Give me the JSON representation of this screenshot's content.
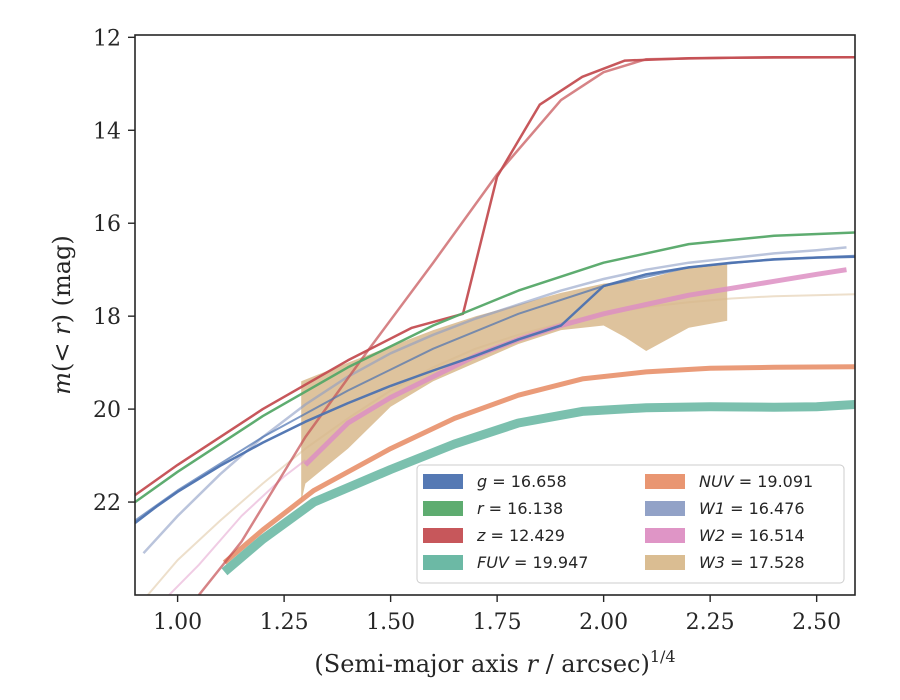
{
  "chart_data": {
    "type": "line",
    "xlabel": "(Semi-major axis r / arcsec)",
    "xlabel_sup": "1/4",
    "ylabel": "m(< r) (mag)",
    "xlim": [
      0.9,
      2.59
    ],
    "ylim": [
      24.0,
      11.95
    ],
    "y_inverted": true,
    "x_ticks": [
      1.0,
      1.25,
      1.5,
      1.75,
      2.0,
      2.25,
      2.5
    ],
    "x_tick_labels": [
      "1.00",
      "1.25",
      "1.50",
      "1.75",
      "2.00",
      "2.25",
      "2.50"
    ],
    "y_ticks": [
      12,
      14,
      16,
      18,
      20,
      22
    ],
    "y_tick_labels": [
      "12",
      "14",
      "16",
      "18",
      "20",
      "22"
    ],
    "grid": false,
    "legend_position": "lower-right",
    "series": [
      {
        "name": "g",
        "legend_value": "16.658",
        "color": "#4c72b0",
        "points": [
          [
            0.9,
            22.45
          ],
          [
            0.95,
            22.1
          ],
          [
            1.0,
            21.78
          ],
          [
            1.1,
            21.22
          ],
          [
            1.2,
            20.72
          ],
          [
            1.3,
            20.27
          ],
          [
            1.4,
            19.87
          ],
          [
            1.5,
            19.5
          ],
          [
            1.6,
            19.17
          ],
          [
            1.7,
            18.85
          ],
          [
            1.8,
            18.5
          ],
          [
            1.9,
            18.2
          ],
          [
            2.0,
            17.35
          ],
          [
            2.1,
            17.1
          ],
          [
            2.2,
            16.95
          ],
          [
            2.3,
            16.85
          ],
          [
            2.4,
            16.78
          ],
          [
            2.5,
            16.74
          ],
          [
            2.59,
            16.72
          ]
        ],
        "fit": [
          [
            0.9,
            22.4
          ],
          [
            1.0,
            21.75
          ],
          [
            1.2,
            20.6
          ],
          [
            1.4,
            19.6
          ],
          [
            1.6,
            18.7
          ],
          [
            1.8,
            17.95
          ],
          [
            2.0,
            17.35
          ],
          [
            2.2,
            16.95
          ],
          [
            2.4,
            16.77
          ],
          [
            2.59,
            16.7
          ]
        ],
        "width": 2.5,
        "opacity": 0.95
      },
      {
        "name": "r",
        "legend_value": "16.138",
        "color": "#55a868",
        "points": [
          [
            0.9,
            22.0
          ],
          [
            1.0,
            21.35
          ],
          [
            1.2,
            20.15
          ],
          [
            1.4,
            19.1
          ],
          [
            1.6,
            18.2
          ],
          [
            1.8,
            17.45
          ],
          [
            2.0,
            16.85
          ],
          [
            2.2,
            16.45
          ],
          [
            2.4,
            16.27
          ],
          [
            2.59,
            16.2
          ]
        ],
        "width": 2.5,
        "opacity": 0.95
      },
      {
        "name": "z",
        "legend_value": "12.429",
        "color": "#c44e52",
        "points": [
          [
            0.9,
            21.85
          ],
          [
            1.0,
            21.2
          ],
          [
            1.2,
            20.0
          ],
          [
            1.4,
            18.95
          ],
          [
            1.55,
            18.25
          ],
          [
            1.67,
            17.95
          ],
          [
            1.75,
            15.0
          ],
          [
            1.85,
            13.45
          ],
          [
            1.95,
            12.85
          ],
          [
            2.05,
            12.5
          ],
          [
            2.2,
            12.45
          ],
          [
            2.4,
            12.43
          ],
          [
            2.59,
            12.43
          ]
        ],
        "width": 2.5,
        "opacity": 0.95
      },
      {
        "name": "z_model",
        "color": "#c44e52",
        "points": [
          [
            1.05,
            24.0
          ],
          [
            1.15,
            22.85
          ],
          [
            1.3,
            20.6
          ],
          [
            1.45,
            18.7
          ],
          [
            1.6,
            16.85
          ],
          [
            1.75,
            14.95
          ],
          [
            1.9,
            13.35
          ],
          [
            2.0,
            12.75
          ],
          [
            2.1,
            12.47
          ],
          [
            2.3,
            12.44
          ],
          [
            2.59,
            12.43
          ]
        ],
        "width": 2.5,
        "opacity": 0.7
      },
      {
        "name": "FUV",
        "legend_value": "19.947",
        "color": "#64b5a0",
        "points": [
          [
            1.11,
            23.5
          ],
          [
            1.2,
            22.8
          ],
          [
            1.32,
            22.0
          ],
          [
            1.5,
            21.3
          ],
          [
            1.65,
            20.75
          ],
          [
            1.8,
            20.3
          ],
          [
            1.95,
            20.05
          ],
          [
            2.1,
            19.97
          ],
          [
            2.25,
            19.95
          ],
          [
            2.4,
            19.96
          ],
          [
            2.5,
            19.95
          ],
          [
            2.59,
            19.9
          ]
        ],
        "width": 9,
        "opacity": 0.85
      },
      {
        "name": "NUV",
        "legend_value": "19.091",
        "color": "#e8906a",
        "points": [
          [
            1.11,
            23.3
          ],
          [
            1.2,
            22.6
          ],
          [
            1.32,
            21.75
          ],
          [
            1.5,
            20.85
          ],
          [
            1.65,
            20.2
          ],
          [
            1.8,
            19.7
          ],
          [
            1.95,
            19.35
          ],
          [
            2.1,
            19.2
          ],
          [
            2.25,
            19.12
          ],
          [
            2.4,
            19.1
          ],
          [
            2.59,
            19.09
          ]
        ],
        "width": 5,
        "opacity": 0.9
      },
      {
        "name": "W1",
        "legend_value": "16.476",
        "color": "#8c9dc4",
        "points": [
          [
            0.92,
            23.1
          ],
          [
            1.0,
            22.3
          ],
          [
            1.1,
            21.4
          ],
          [
            1.2,
            20.6
          ],
          [
            1.3,
            19.9
          ],
          [
            1.4,
            19.3
          ],
          [
            1.5,
            18.8
          ],
          [
            1.6,
            18.4
          ],
          [
            1.7,
            18.05
          ],
          [
            1.8,
            17.75
          ],
          [
            1.9,
            17.45
          ],
          [
            2.0,
            17.2
          ],
          [
            2.1,
            17.0
          ],
          [
            2.2,
            16.85
          ],
          [
            2.3,
            16.75
          ],
          [
            2.4,
            16.65
          ],
          [
            2.5,
            16.58
          ],
          [
            2.57,
            16.52
          ]
        ],
        "width": 2.5,
        "opacity": 0.6
      },
      {
        "name": "W2",
        "legend_value": "16.514",
        "color": "#dd8fc3",
        "points": [
          [
            1.3,
            21.2
          ],
          [
            1.4,
            20.3
          ],
          [
            1.5,
            19.75
          ],
          [
            1.6,
            19.3
          ],
          [
            1.7,
            18.85
          ],
          [
            1.8,
            18.5
          ],
          [
            1.9,
            18.2
          ],
          [
            2.0,
            17.95
          ],
          [
            2.1,
            17.75
          ],
          [
            2.2,
            17.55
          ],
          [
            2.3,
            17.4
          ],
          [
            2.4,
            17.25
          ],
          [
            2.5,
            17.1
          ],
          [
            2.57,
            17.0
          ]
        ],
        "width": 5,
        "opacity": 0.85
      },
      {
        "name": "W2_model",
        "color": "#dd8fc3",
        "points": [
          [
            0.98,
            24.0
          ],
          [
            1.05,
            23.35
          ],
          [
            1.15,
            22.3
          ],
          [
            1.25,
            21.45
          ],
          [
            1.3,
            21.1
          ]
        ],
        "width": 2,
        "opacity": 0.45
      },
      {
        "name": "W3",
        "legend_value": "17.528",
        "color": "#d8b98c",
        "band_upper": [
          [
            1.29,
            19.4
          ],
          [
            1.4,
            19.0
          ],
          [
            1.5,
            18.65
          ],
          [
            1.6,
            18.3
          ],
          [
            1.7,
            18.0
          ],
          [
            1.8,
            17.75
          ],
          [
            1.9,
            17.5
          ],
          [
            2.0,
            17.3
          ],
          [
            2.1,
            17.2
          ],
          [
            2.2,
            16.95
          ],
          [
            2.29,
            16.85
          ]
        ],
        "band_lower": [
          [
            1.29,
            22.0
          ],
          [
            1.3,
            21.6
          ],
          [
            1.4,
            20.85
          ],
          [
            1.5,
            19.95
          ],
          [
            1.6,
            19.4
          ],
          [
            1.7,
            19.0
          ],
          [
            1.8,
            18.6
          ],
          [
            1.9,
            18.3
          ],
          [
            2.0,
            18.2
          ],
          [
            2.05,
            18.45
          ],
          [
            2.1,
            18.75
          ],
          [
            2.2,
            18.25
          ],
          [
            2.29,
            18.1
          ]
        ],
        "points": [
          [
            0.93,
            24.0
          ],
          [
            1.0,
            23.25
          ],
          [
            1.1,
            22.4
          ],
          [
            1.2,
            21.6
          ],
          [
            1.3,
            20.85
          ],
          [
            1.4,
            20.2
          ],
          [
            1.5,
            19.6
          ],
          [
            1.6,
            19.1
          ],
          [
            1.7,
            18.7
          ],
          [
            1.8,
            18.4
          ],
          [
            1.9,
            18.15
          ],
          [
            2.0,
            17.95
          ],
          [
            2.1,
            17.8
          ],
          [
            2.2,
            17.7
          ],
          [
            2.3,
            17.62
          ],
          [
            2.4,
            17.57
          ],
          [
            2.59,
            17.53
          ]
        ],
        "width": 2,
        "opacity": 0.45
      }
    ]
  }
}
